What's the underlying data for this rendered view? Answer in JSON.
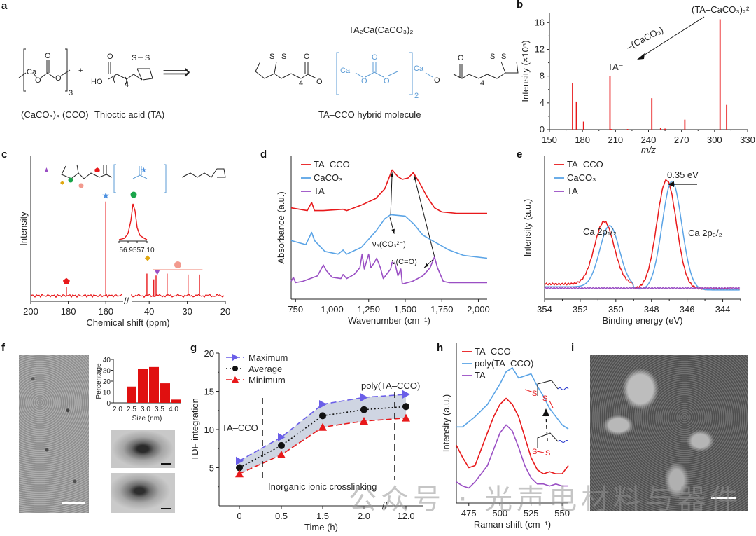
{
  "figure": {
    "panels": [
      "a",
      "b",
      "c",
      "d",
      "e",
      "f",
      "g",
      "h",
      "i"
    ]
  },
  "panel_a": {
    "label": "a",
    "reactant1_name": "(CaCO₃)₃ (CCO)",
    "reactant2_name": "Thioctic acid (TA)",
    "plus": "+",
    "arrow": "⟹",
    "product_formula": "TA₂Ca(CaCO₃)₂",
    "product_name": "TA–CCO hybrid molecule",
    "atoms": {
      "Ca": "Ca",
      "O": "O",
      "HO": "HO",
      "S": "S",
      "sub3": "3",
      "sub4": "4",
      "sub2": "2"
    },
    "colors": {
      "inorganic": "#5b9bd5",
      "organic": "#222222"
    }
  },
  "chart_data": [
    {
      "panel": "b",
      "type": "bar",
      "title": "",
      "xlabel": "m/z",
      "ylabel": "Intensity (×10⁵)",
      "xlim": [
        150,
        330
      ],
      "ylim": [
        0,
        17.5
      ],
      "xticks": [
        "150",
        "180",
        "210",
        "240",
        "270",
        "300",
        "330"
      ],
      "yticks": [
        "0",
        "4",
        "8",
        "12",
        "16"
      ],
      "x": [
        171,
        174.5,
        181,
        205,
        206,
        221,
        243,
        251,
        255,
        273,
        305,
        311
      ],
      "values": [
        7.0,
        4.2,
        1.2,
        8.0,
        0.1,
        0.1,
        4.7,
        0.3,
        0.15,
        1.5,
        16.5,
        3.7
      ],
      "color": "#e8191b",
      "annotations": [
        {
          "text": "(TA–CaCO₃)₂²⁻",
          "at_x": 305
        },
        {
          "text": "TA⁻",
          "at_x": 205
        },
        {
          "text": "–(CaCO₃)",
          "kind": "arrow-label"
        }
      ]
    },
    {
      "panel": "c",
      "type": "line",
      "title": "",
      "xlabel": "Chemical shift (ppm)",
      "ylabel": "Intensity",
      "xticks": [
        "200",
        "180",
        "160",
        "40",
        "30",
        "20"
      ],
      "axis_break": true,
      "peaks": [
        {
          "ppm": 181,
          "height": 0.09,
          "marker": "pentagon",
          "color": "#e8191b"
        },
        {
          "ppm": 160,
          "height": 0.98,
          "marker": "star",
          "color": "#4a8fe0"
        },
        {
          "ppm": 40.6,
          "height": 0.23,
          "marker": "diamond",
          "color": "#e0a810"
        },
        {
          "ppm": 38.8,
          "height": 0.17,
          "marker": "triangle",
          "color": "#9a4fc4"
        },
        {
          "ppm": 38.2,
          "height": 0.21
        },
        {
          "ppm": 35.3,
          "height": 0.23
        },
        {
          "ppm": 29.8,
          "height": 0.22
        },
        {
          "ppm": 26.8,
          "height": 0.22
        }
      ],
      "bracket_marker": {
        "color": "#f29a8e",
        "marker": "circle",
        "range": [
          39,
          26
        ]
      },
      "inset": {
        "xticks": [
          "56.95",
          "57.10"
        ],
        "marker": "circle",
        "marker_color": "#1aa54a"
      },
      "color": "#e8191b"
    },
    {
      "panel": "d",
      "type": "line",
      "xlabel": "Wavenumber (cm⁻¹)",
      "ylabel": "Absorbance (a.u.)",
      "xlim": [
        720,
        2060
      ],
      "xticks": [
        "750",
        "1,000",
        "1,250",
        "1,500",
        "1,750",
        "2,000"
      ],
      "xtick_values": [
        750,
        1000,
        1250,
        1500,
        1750,
        2000
      ],
      "legend": "top-left",
      "series": [
        {
          "name": "TA–CCO",
          "color": "#e8191b",
          "points": [
            [
              720,
              0.62
            ],
            [
              830,
              0.6
            ],
            [
              860,
              0.66
            ],
            [
              880,
              0.6
            ],
            [
              940,
              0.6
            ],
            [
              1075,
              0.61
            ],
            [
              1100,
              0.6
            ],
            [
              1200,
              0.64
            ],
            [
              1300,
              0.69
            ],
            [
              1360,
              0.76
            ],
            [
              1410,
              0.9
            ],
            [
              1450,
              0.85
            ],
            [
              1480,
              0.83
            ],
            [
              1520,
              0.84
            ],
            [
              1555,
              0.88
            ],
            [
              1600,
              0.8
            ],
            [
              1650,
              0.7
            ],
            [
              1700,
              0.62
            ],
            [
              1750,
              0.59
            ],
            [
              1850,
              0.58
            ],
            [
              2060,
              0.58
            ]
          ]
        },
        {
          "name": "CaCO₃",
          "color": "#5ba4e6",
          "points": [
            [
              720,
              0.38
            ],
            [
              820,
              0.35
            ],
            [
              860,
              0.44
            ],
            [
              880,
              0.38
            ],
            [
              950,
              0.3
            ],
            [
              1040,
              0.28
            ],
            [
              1075,
              0.31
            ],
            [
              1100,
              0.28
            ],
            [
              1200,
              0.33
            ],
            [
              1300,
              0.45
            ],
            [
              1360,
              0.54
            ],
            [
              1400,
              0.57
            ],
            [
              1500,
              0.56
            ],
            [
              1560,
              0.5
            ],
            [
              1620,
              0.42
            ],
            [
              1700,
              0.37
            ],
            [
              1800,
              0.31
            ],
            [
              1900,
              0.27
            ],
            [
              2060,
              0.25
            ]
          ]
        },
        {
          "name": "TA",
          "color": "#9a4fc4",
          "points": [
            [
              720,
              0.08
            ],
            [
              735,
              0.11
            ],
            [
              750,
              0.07
            ],
            [
              800,
              0.08
            ],
            [
              900,
              0.12
            ],
            [
              940,
              0.2
            ],
            [
              960,
              0.16
            ],
            [
              1000,
              0.11
            ],
            [
              1060,
              0.1
            ],
            [
              1075,
              0.13
            ],
            [
              1100,
              0.1
            ],
            [
              1150,
              0.13
            ],
            [
              1190,
              0.18
            ],
            [
              1205,
              0.28
            ],
            [
              1220,
              0.17
            ],
            [
              1250,
              0.28
            ],
            [
              1265,
              0.18
            ],
            [
              1290,
              0.22
            ],
            [
              1305,
              0.25
            ],
            [
              1330,
              0.18
            ],
            [
              1350,
              0.1
            ],
            [
              1400,
              0.17
            ],
            [
              1410,
              0.22
            ],
            [
              1430,
              0.21
            ],
            [
              1450,
              0.12
            ],
            [
              1470,
              0.17
            ],
            [
              1480,
              0.06
            ],
            [
              1550,
              0.08
            ],
            [
              1620,
              0.12
            ],
            [
              1670,
              0.18
            ],
            [
              1700,
              0.26
            ],
            [
              1720,
              0.18
            ],
            [
              1760,
              0.08
            ],
            [
              1800,
              0.07
            ],
            [
              2060,
              0.07
            ]
          ]
        }
      ],
      "annotations": [
        {
          "text": "ν₃(CO₃²⁻)"
        },
        {
          "text": "ν(C=O)"
        }
      ]
    },
    {
      "panel": "e",
      "type": "line",
      "xlabel": "Binding energy (eV)",
      "ylabel": "Intensity (a.u.)",
      "xlim": [
        354,
        343
      ],
      "xticks": [
        "354",
        "352",
        "350",
        "348",
        "346",
        "344"
      ],
      "xtick_values": [
        354,
        352,
        350,
        348,
        346,
        344
      ],
      "legend": "top-left",
      "series": [
        {
          "name": "TA–CCO",
          "color": "#e8191b",
          "peaks": [
            {
              "center": 350.65,
              "height": 0.46
            },
            {
              "center": 347.15,
              "height": 0.8
            }
          ],
          "baseline": 0.06
        },
        {
          "name": "CaCO₃",
          "color": "#5ba4e6",
          "peaks": [
            {
              "center": 350.35,
              "height": 0.45
            },
            {
              "center": 346.85,
              "height": 0.8
            }
          ],
          "baseline": 0.04
        },
        {
          "name": "TA",
          "color": "#9a4fc4",
          "flat": 0.03
        }
      ],
      "annotations": [
        {
          "text": "Ca 2p₁/₂"
        },
        {
          "text": "Ca 2p₃/₂"
        },
        {
          "text": "0.35 eV"
        }
      ]
    },
    {
      "panel": "f-inset",
      "type": "bar",
      "xlabel": "Size (nm)",
      "ylabel": "Percentage",
      "categories": [
        "2.0",
        "2.5",
        "3.0",
        "3.5",
        "4.0"
      ],
      "bar_centers": [
        2.5,
        2.9,
        3.3,
        3.7,
        4.1
      ],
      "xticks": [
        "2.0",
        "2.5",
        "3.0",
        "3.5",
        "4.0"
      ],
      "values": [
        15,
        31,
        33,
        18,
        3
      ],
      "ylim": [
        0,
        40
      ],
      "yticks": [
        "0",
        "10",
        "20",
        "30",
        "40"
      ],
      "color": "#e01010"
    },
    {
      "panel": "g",
      "type": "line",
      "xlabel": "Time (h)",
      "ylabel": "TDF integration",
      "categories": [
        "0",
        "0.5",
        "1.5",
        "2.0",
        "12.0"
      ],
      "ylim": [
        0,
        20
      ],
      "yticks": [
        "5",
        "10",
        "15",
        "20"
      ],
      "legend": "top-left",
      "series": [
        {
          "name": "Maximum",
          "color": "#6a5ee8",
          "marker": "right-triangle",
          "values": [
            5.9,
            9.0,
            13.3,
            14.2,
            14.6
          ]
        },
        {
          "name": "Average",
          "color": "#111111",
          "marker": "circle",
          "values": [
            5.0,
            7.9,
            11.8,
            12.6,
            13.0
          ]
        },
        {
          "name": "Minimum",
          "color": "#e8191b",
          "marker": "triangle",
          "values": [
            4.2,
            6.7,
            10.3,
            11.1,
            11.5
          ]
        }
      ],
      "band_color": "#cfd5e2",
      "annotations": [
        {
          "text": "TA–CCO"
        },
        {
          "text": "poly(TA–CCO)"
        },
        {
          "text": "Inorganic ionic crosslinking"
        }
      ]
    },
    {
      "panel": "h",
      "type": "line",
      "xlabel": "Raman shift (cm⁻¹)",
      "ylabel": "Intensity (a.u.)",
      "xlim": [
        465,
        555
      ],
      "xticks": [
        "475",
        "500",
        "525",
        "550"
      ],
      "xtick_values": [
        475,
        500,
        525,
        550
      ],
      "legend": "top-left",
      "series": [
        {
          "name": "TA–CCO",
          "color": "#e8191b",
          "points": [
            [
              465,
              0.62
            ],
            [
              470,
              0.56
            ],
            [
              475,
              0.51
            ],
            [
              480,
              0.52
            ],
            [
              488,
              0.65
            ],
            [
              495,
              0.76
            ],
            [
              500,
              0.82
            ],
            [
              505,
              0.85
            ],
            [
              510,
              0.82
            ],
            [
              515,
              0.76
            ],
            [
              520,
              0.66
            ],
            [
              525,
              0.56
            ],
            [
              530,
              0.5
            ],
            [
              535,
              0.48
            ],
            [
              540,
              0.49
            ],
            [
              545,
              0.48
            ],
            [
              550,
              0.48
            ],
            [
              555,
              0.52
            ]
          ]
        },
        {
          "name": "poly(TA–CCO)",
          "color": "#5ba4e6",
          "points": [
            [
              465,
              0.71
            ],
            [
              470,
              0.71
            ],
            [
              480,
              0.76
            ],
            [
              490,
              0.82
            ],
            [
              500,
              0.92
            ],
            [
              505,
              0.98
            ],
            [
              510,
              1.0
            ],
            [
              515,
              0.95
            ],
            [
              520,
              0.96
            ],
            [
              525,
              0.97
            ],
            [
              530,
              0.91
            ],
            [
              535,
              0.86
            ],
            [
              540,
              0.8
            ],
            [
              545,
              0.76
            ],
            [
              550,
              0.72
            ],
            [
              555,
              0.7
            ]
          ]
        },
        {
          "name": "TA",
          "color": "#9a4fc4",
          "points": [
            [
              465,
              0.44
            ],
            [
              470,
              0.42
            ],
            [
              475,
              0.41
            ],
            [
              480,
              0.44
            ],
            [
              490,
              0.52
            ],
            [
              495,
              0.6
            ],
            [
              500,
              0.68
            ],
            [
              505,
              0.72
            ],
            [
              510,
              0.69
            ],
            [
              515,
              0.61
            ],
            [
              520,
              0.52
            ],
            [
              525,
              0.46
            ],
            [
              530,
              0.43
            ],
            [
              535,
              0.43
            ],
            [
              540,
              0.42
            ],
            [
              545,
              0.43
            ],
            [
              550,
              0.42
            ],
            [
              555,
              0.42
            ]
          ]
        }
      ]
    }
  ],
  "panel_f": {
    "label": "f"
  },
  "panel_i": {
    "label": "i"
  },
  "watermark": "公众号 · 光声电材料与器件"
}
